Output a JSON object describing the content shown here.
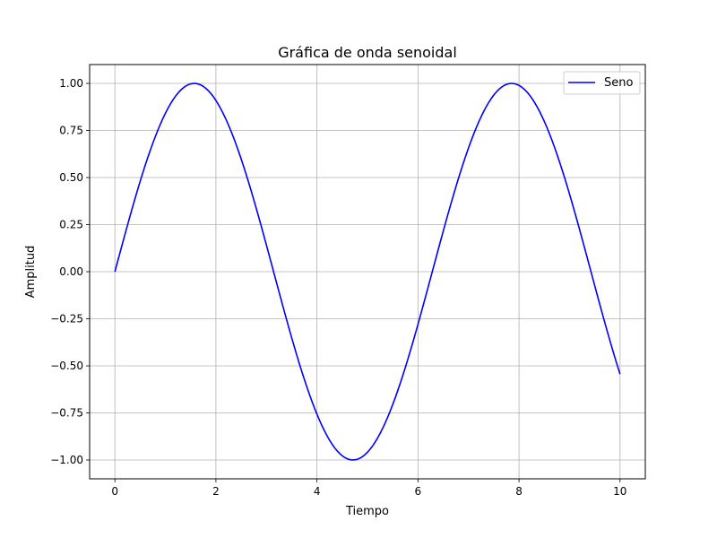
{
  "chart_data": {
    "type": "line",
    "title": "Gráfica de onda senoidal",
    "xlabel": "Tiempo",
    "ylabel": "Amplitud",
    "xlim": [
      -0.5,
      10.5
    ],
    "ylim": [
      -1.1,
      1.1
    ],
    "xticks": [
      0,
      2,
      4,
      6,
      8,
      10
    ],
    "xtick_labels": [
      "0",
      "2",
      "4",
      "6",
      "8",
      "10"
    ],
    "yticks": [
      -1.0,
      -0.75,
      -0.5,
      -0.25,
      0.0,
      0.25,
      0.5,
      0.75,
      1.0
    ],
    "ytick_labels": [
      "−1.00",
      "−0.75",
      "−0.50",
      "−0.25",
      "0.00",
      "0.25",
      "0.50",
      "0.75",
      "1.00"
    ],
    "grid": true,
    "legend_position": "top-right",
    "series": [
      {
        "name": "Seno",
        "color": "#0000ff",
        "function": "sin(x)",
        "x_start": 0,
        "x_end": 10,
        "samples": 200
      }
    ]
  }
}
